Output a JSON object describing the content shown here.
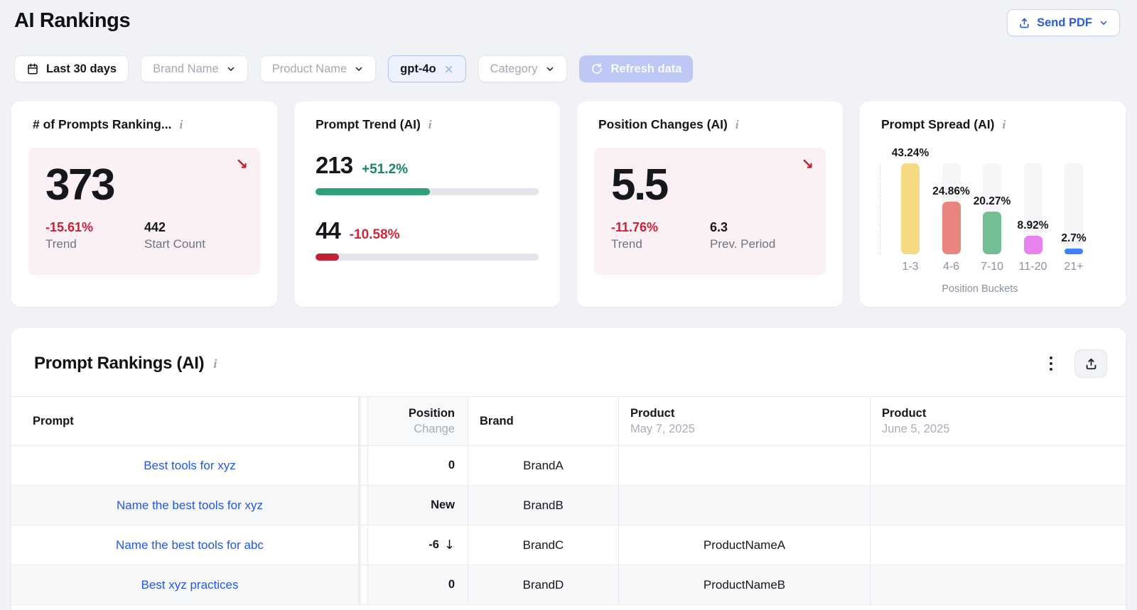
{
  "header": {
    "title": "AI Rankings",
    "send_pdf": "Send PDF"
  },
  "filters": {
    "date_range": "Last 30 days",
    "brand": "Brand Name",
    "product": "Product Name",
    "model_chip": "gpt-4o",
    "category": "Category",
    "refresh": "Refresh data"
  },
  "colors": {
    "accent_blue": "#2d5ad8",
    "link_blue": "#2356ec",
    "trend_red": "#cb2134",
    "trend_green": "#15895a",
    "pink_panel": "#fbf1f5",
    "refresh_disabled": "#bdc8f4"
  },
  "cards": {
    "prompts_ranking": {
      "title": "# of Prompts Ranking...",
      "value": "373",
      "trend": "-15.61%",
      "trend_label": "Trend",
      "start_count": "442",
      "start_count_label": "Start Count"
    },
    "prompt_trend": {
      "title": "Prompt Trend (AI)",
      "up_value": "213",
      "up_pct": "+51.2%",
      "up_pct_value": 51.2,
      "down_value": "44",
      "down_pct": "-10.58%",
      "down_pct_value": 10.58
    },
    "position_changes": {
      "title": "Position Changes (AI)",
      "value": "5.5",
      "trend": "-11.76%",
      "trend_label": "Trend",
      "prev": "6.3",
      "prev_label": "Prev. Period"
    },
    "prompt_spread": {
      "title": "Prompt Spread (AI)"
    }
  },
  "chart_data": {
    "type": "bar",
    "title": "Prompt Spread (AI)",
    "categories": [
      "1-3",
      "4-6",
      "7-10",
      "11-20",
      "21+"
    ],
    "values": [
      43.24,
      24.86,
      20.27,
      8.92,
      2.7
    ],
    "labels": [
      "43.24%",
      "24.86%",
      "20.27%",
      "8.92%",
      "2.7%"
    ],
    "colors": [
      "#f6d983",
      "#e9847f",
      "#74bd95",
      "#e882ee",
      "#3c82f4"
    ],
    "xlabel": "Position Buckets",
    "ylabel": "",
    "ylim": [
      0,
      43.24
    ],
    "grid": false,
    "legend": false
  },
  "table": {
    "title": "Prompt Rankings (AI)",
    "col_prompt": "Prompt",
    "col_position": "Position",
    "col_change": "Change",
    "col_brand": "Brand",
    "col_product_may": "Product",
    "col_may_date": "May 7, 2025",
    "col_product_june": "Product",
    "col_june_date": "June 5, 2025",
    "rows": [
      {
        "prompt": "Best tools for xyz",
        "change": "0",
        "change_type": "zero",
        "brand": "BrandA",
        "product_may": "",
        "product_june": ""
      },
      {
        "prompt": "Name the best tools for xyz",
        "change": "New",
        "change_type": "new",
        "brand": "BrandB",
        "product_may": "",
        "product_june": ""
      },
      {
        "prompt": "Name the best tools for abc",
        "change": "-6",
        "change_type": "down",
        "brand": "BrandC",
        "product_may": "ProductNameA",
        "product_june": ""
      },
      {
        "prompt": "Best xyz practices",
        "change": "0",
        "change_type": "zero",
        "brand": "BrandD",
        "product_may": "ProductNameB",
        "product_june": ""
      }
    ]
  }
}
